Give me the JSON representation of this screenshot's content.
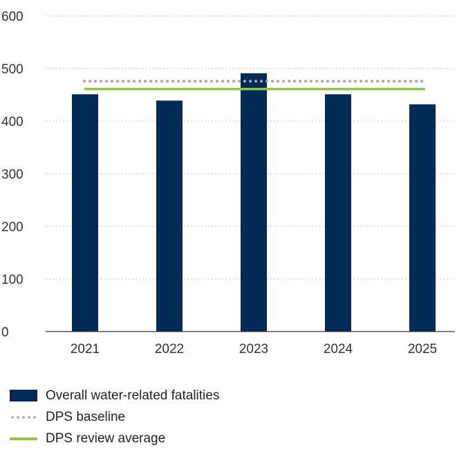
{
  "chart_data": {
    "type": "bar",
    "categories": [
      "2021",
      "2022",
      "2023",
      "2024",
      "2025"
    ],
    "series": [
      {
        "name": "Overall water-related fatalities",
        "values": [
          451,
          439,
          491,
          451,
          432
        ]
      }
    ],
    "reference_lines": [
      {
        "name": "DPS baseline",
        "value": 476,
        "style": "dotted",
        "color": "#a9a9a9"
      },
      {
        "name": "DPS review average",
        "value": 461,
        "style": "solid",
        "color": "#8dc63f"
      }
    ],
    "y_ticks": [
      "0",
      "100",
      "200",
      "300",
      "400",
      "500",
      "600"
    ],
    "ylim": [
      0,
      600
    ],
    "grid": true,
    "legend_position": "bottom-left",
    "bar_color": "#002b57"
  },
  "legend": {
    "bars": "Overall water-related fatalities",
    "baseline": "DPS baseline",
    "review_average": "DPS review average"
  }
}
